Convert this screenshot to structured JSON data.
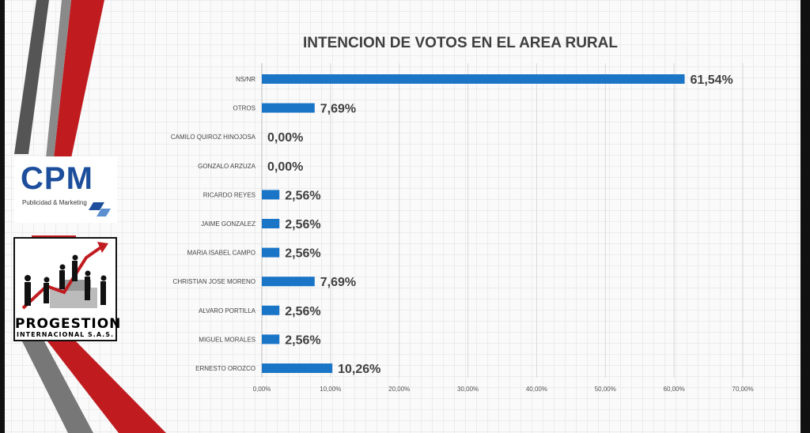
{
  "logos": {
    "cpm": {
      "name": "CPM",
      "tagline": "Publicidad & Marketing"
    },
    "progestion": {
      "name": "PROGESTION",
      "tagline": "INTERNACIONAL S.A.S."
    }
  },
  "colors": {
    "bar": "#1b75c7",
    "stripe_red": "#c01c20",
    "stripe_gray": "#4a4a4a",
    "title": "#3f3f3f"
  },
  "chart_data": {
    "type": "bar",
    "orientation": "horizontal",
    "title": "INTENCION DE VOTOS EN EL AREA RURAL",
    "categories": [
      "NS/NR",
      "OTROS",
      "CAMILO QUIROZ HINOJOSA",
      "GONZALO ARZUZA",
      "RICARDO REYES",
      "JAIME GONZALEZ",
      "MARIA ISABEL CAMPO",
      "CHRISTIAN JOSE MORENO",
      "ALVARO PORTILLA",
      "MIGUEL MORALES",
      "ERNESTO OROZCO"
    ],
    "values": [
      61.54,
      7.69,
      0.0,
      0.0,
      2.56,
      2.56,
      2.56,
      7.69,
      2.56,
      2.56,
      10.26
    ],
    "data_labels": [
      "61,54%",
      "7,69%",
      "0,00%",
      "0,00%",
      "2,56%",
      "2,56%",
      "2,56%",
      "7,69%",
      "2,56%",
      "2,56%",
      "10,26%"
    ],
    "x_ticks": [
      0,
      10,
      20,
      30,
      40,
      50,
      60,
      70
    ],
    "x_tick_labels": [
      "0,00%",
      "10,00%",
      "20,00%",
      "30,00%",
      "40,00%",
      "50,00%",
      "60,00%",
      "70,00%"
    ],
    "xlim": [
      0,
      70
    ],
    "grid": true,
    "legend": "none"
  }
}
